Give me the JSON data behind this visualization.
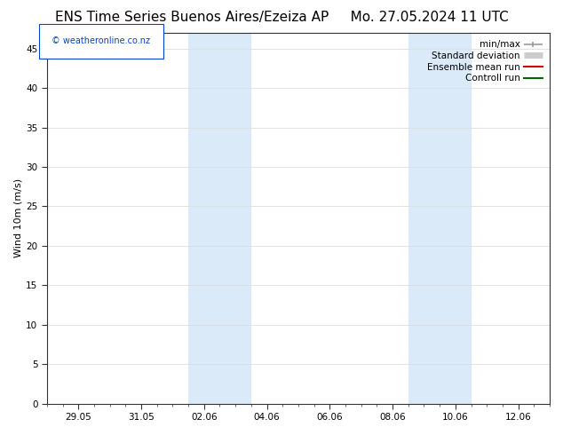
{
  "title_left": "ENS Time Series Buenos Aires/Ezeiza AP",
  "title_right": "Mo. 27.05.2024 11 UTC",
  "ylabel": "Wind 10m (m/s)",
  "watermark": "© weatheronline.co.nz",
  "ylim": [
    0,
    47
  ],
  "yticks": [
    0,
    5,
    10,
    15,
    20,
    25,
    30,
    35,
    40,
    45
  ],
  "weekend_bands": [
    {
      "start": 4.5,
      "end": 6.5
    },
    {
      "start": 11.5,
      "end": 13.5
    }
  ],
  "band_color": "#daeaf8",
  "legend_items": [
    {
      "label": "min/max",
      "color": "#999999",
      "lw": 1.2
    },
    {
      "label": "Standard deviation",
      "color": "#cccccc",
      "lw": 5
    },
    {
      "label": "Ensemble mean run",
      "color": "#cc0000",
      "lw": 1.5
    },
    {
      "label": "Controll run",
      "color": "#006600",
      "lw": 1.5
    }
  ],
  "xtick_labels": [
    "29.05",
    "31.05",
    "02.06",
    "04.06",
    "06.06",
    "08.06",
    "10.06",
    "12.06"
  ],
  "xtick_positions": [
    1,
    3,
    5,
    7,
    9,
    11,
    13,
    15
  ],
  "xlim": [
    0,
    16
  ],
  "title_fontsize": 11,
  "axis_fontsize": 8,
  "tick_fontsize": 7.5,
  "legend_fontsize": 7.5,
  "watermark_fontsize": 7,
  "background_color": "#ffffff",
  "grid_color": "#dddddd",
  "spine_color": "#333333"
}
